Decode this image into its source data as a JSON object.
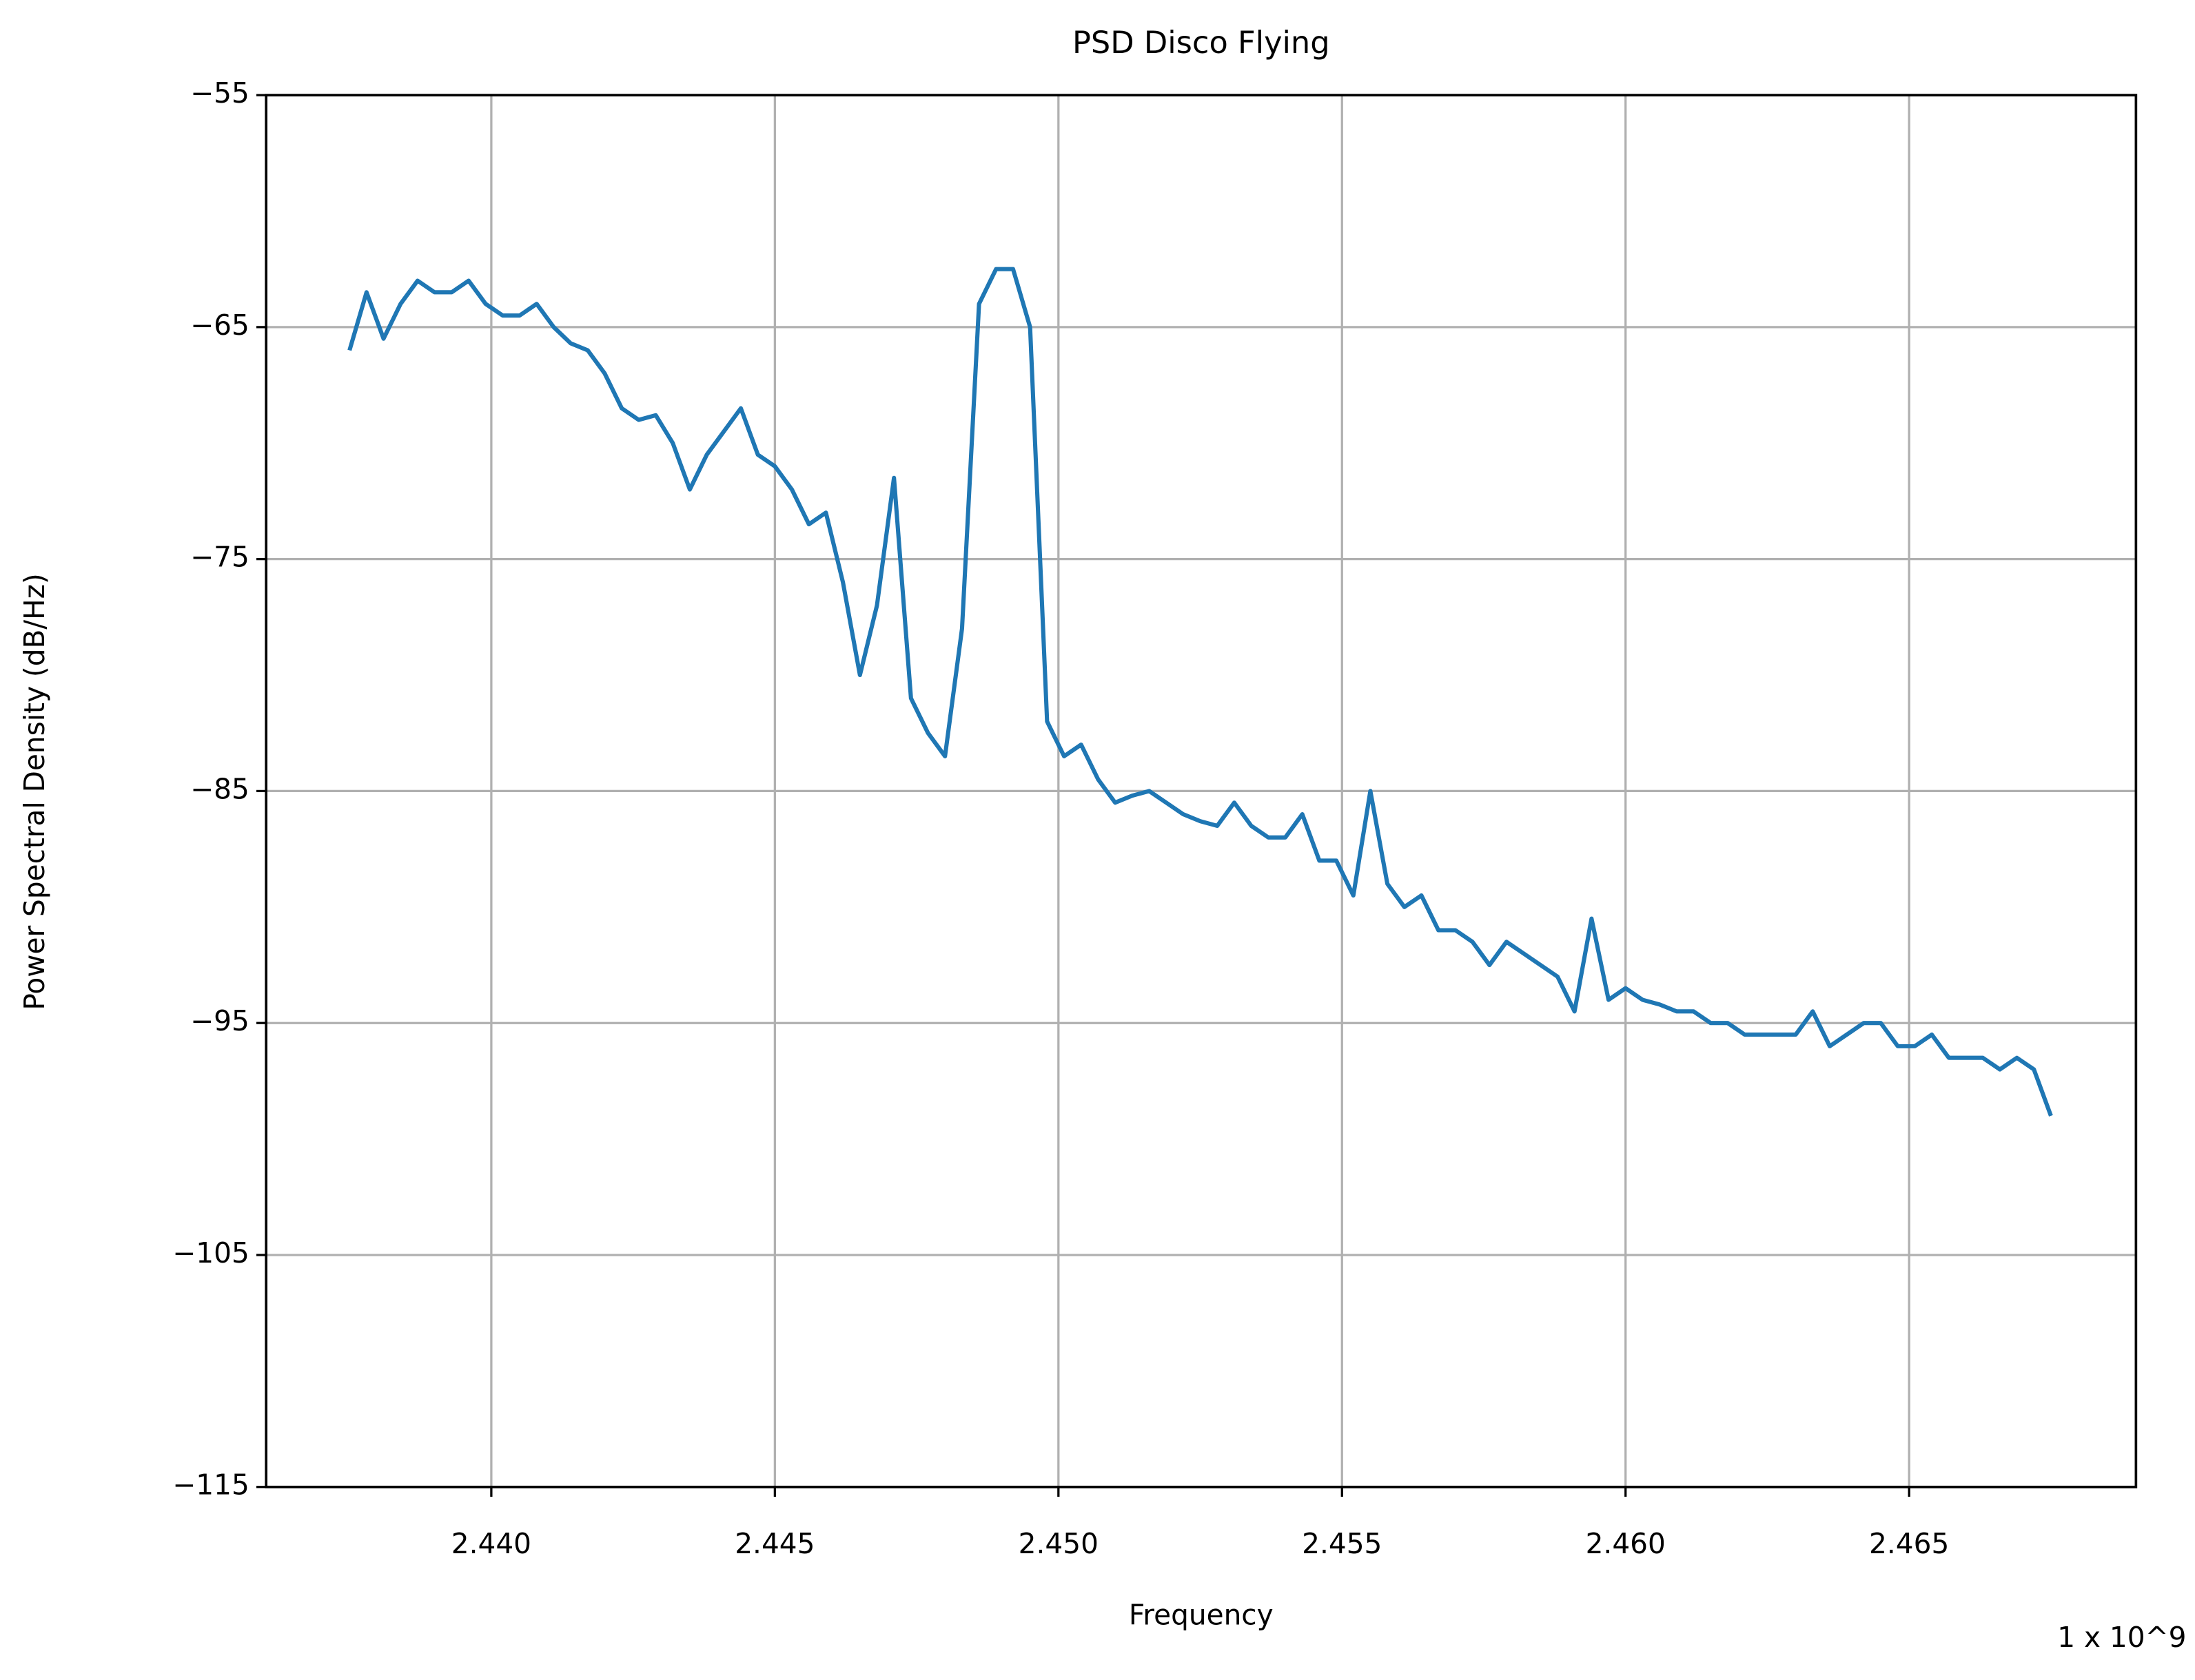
{
  "chart_data": {
    "type": "line",
    "title": "PSD Disco Flying",
    "x_label": "Frequency",
    "y_label": "Power Spectral Density (dB/Hz)",
    "x_offset_label": "1 x 10^9",
    "grid": true,
    "xlim": [
      2.43603,
      2.469
    ],
    "ylim": [
      -115,
      -55
    ],
    "xticks": [
      {
        "value": 2.44,
        "label": "2.440"
      },
      {
        "value": 2.445,
        "label": "2.445"
      },
      {
        "value": 2.45,
        "label": "2.450"
      },
      {
        "value": 2.455,
        "label": "2.455"
      },
      {
        "value": 2.46,
        "label": "2.460"
      },
      {
        "value": 2.465,
        "label": "2.465"
      }
    ],
    "yticks": [
      {
        "value": -55,
        "label": "−55"
      },
      {
        "value": -65,
        "label": "−65"
      },
      {
        "value": -75,
        "label": "−75"
      },
      {
        "value": -85,
        "label": "−85"
      },
      {
        "value": -95,
        "label": "−95"
      },
      {
        "value": -105,
        "label": "−105"
      },
      {
        "value": -115,
        "label": "−115"
      }
    ],
    "x": [
      2.4375,
      2.4378,
      2.4381,
      2.4384,
      2.4387,
      2.439,
      2.4393,
      2.4396,
      2.4399,
      2.4402,
      2.4405,
      2.4408,
      2.4411,
      2.4414,
      2.4417,
      2.442,
      2.4423,
      2.4426,
      2.4429,
      2.4432,
      2.4435,
      2.4438,
      2.4441,
      2.4444,
      2.4447,
      2.445,
      2.4453,
      2.4456,
      2.4459,
      2.4462,
      2.4465,
      2.4468,
      2.4471,
      2.4474,
      2.4477,
      2.448,
      2.4483,
      2.4486,
      2.4489,
      2.4492,
      2.4495,
      2.4498,
      2.4501,
      2.4504,
      2.4507,
      2.451,
      2.4513,
      2.4516,
      2.4519,
      2.4522,
      2.4525,
      2.4528,
      2.4531,
      2.4534,
      2.4537,
      2.454,
      2.4543,
      2.4546,
      2.4549,
      2.4552,
      2.4555,
      2.4558,
      2.4561,
      2.4564,
      2.4567,
      2.457,
      2.4573,
      2.4576,
      2.4579,
      2.4582,
      2.4585,
      2.4588,
      2.4591,
      2.4594,
      2.4597,
      2.46,
      2.4603,
      2.4606,
      2.4609,
      2.4612,
      2.4615,
      2.4618,
      2.4621,
      2.4624,
      2.4627,
      2.463,
      2.4633,
      2.4636,
      2.4639,
      2.4642,
      2.4645,
      2.4648,
      2.4651,
      2.4654,
      2.4657,
      2.466,
      2.4663,
      2.4666,
      2.4669,
      2.4672,
      2.4675
    ],
    "series": [
      {
        "color": "#1f77b4",
        "values": [
          -66,
          -63.5,
          -65.5,
          -64,
          -63,
          -63.5,
          -63.5,
          -63,
          -64,
          -64.5,
          -64.5,
          -64,
          -65,
          -65.7,
          -66,
          -67,
          -68.5,
          -69,
          -68.8,
          -70,
          -72,
          -70.5,
          -69.5,
          -68.5,
          -70.5,
          -71,
          -72,
          -73.5,
          -73,
          -76,
          -80,
          -77,
          -71.5,
          -81,
          -82.5,
          -83.5,
          -78,
          -64,
          -62.5,
          -62.5,
          -65,
          -82,
          -83.5,
          -83,
          -84.5,
          -85.5,
          -85.2,
          -85,
          -85.5,
          -86,
          -86.3,
          -86.5,
          -85.5,
          -86.5,
          -87,
          -87,
          -86,
          -88,
          -88,
          -89.5,
          -85,
          -89,
          -90,
          -89.5,
          -91,
          -91,
          -91.5,
          -92.5,
          -91.5,
          -92,
          -92.5,
          -93,
          -94.5,
          -90.5,
          -94,
          -93.5,
          -94,
          -94.2,
          -94.5,
          -94.5,
          -95,
          -95,
          -95.5,
          -95.5,
          -95.5,
          -95.5,
          -94.5,
          -96,
          -95.5,
          -95,
          -95,
          -96,
          -96,
          -95.5,
          -96.5,
          -96.5,
          -96.5,
          -97,
          -96.5,
          -97,
          -99
        ]
      }
    ]
  }
}
